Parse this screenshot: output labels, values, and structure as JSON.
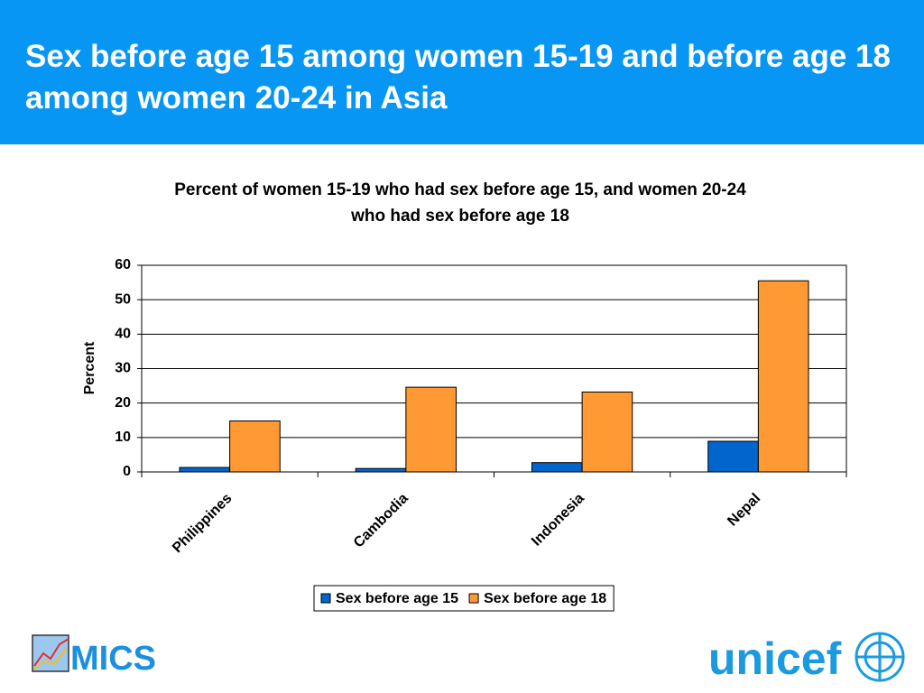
{
  "slide_title": "Sex before age 15 among women 15-19 and before age 18 among women 20-24 in Asia",
  "chart_data": {
    "type": "bar",
    "title": "Percent of women 15-19 who had sex before age 15, and women 20-24 who had sex before age 18",
    "y_label": "Percent",
    "categories": [
      "Philippines",
      "Cambodia",
      "Indonesia",
      "Nepal"
    ],
    "series": [
      {
        "name": "Sex before age 15",
        "color": "#0066cc",
        "values": [
          1.3,
          1.0,
          2.7,
          8.9
        ]
      },
      {
        "name": "Sex before age 18",
        "color": "#ff9933",
        "values": [
          14.8,
          24.6,
          23.2,
          55.5
        ]
      }
    ],
    "ylim": [
      0,
      60
    ],
    "yticks": [
      0,
      10,
      20,
      30,
      40,
      50,
      60
    ],
    "grid": true,
    "legend": "bottom"
  },
  "logos": {
    "left": "MICS",
    "right": "unicef"
  }
}
